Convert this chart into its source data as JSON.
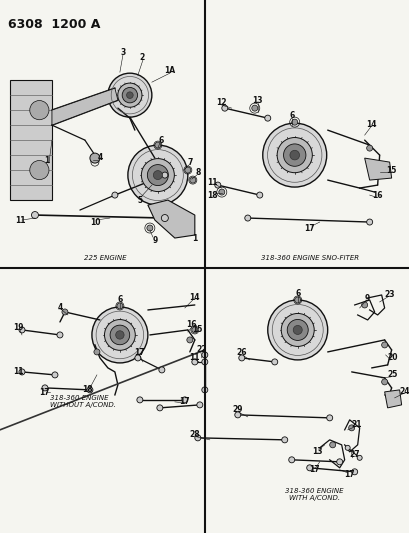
{
  "title": "6308  1200 A",
  "bg_color": "#f5f5f0",
  "line_color": "#1a1a1a",
  "text_color": "#111111",
  "divider_color": "#111111",
  "q1_label": "225 ENGINE",
  "q2_label": "318-360 ENGINE SNO-FITER",
  "q3_label": "318-360 ENGINE\nWITHOUT A/COND.",
  "q4_label": "318-360 ENGINE\nWITH A/COND.",
  "title_fontsize": 9,
  "label_fontsize": 5.0,
  "num_fontsize": 5.5,
  "lc": "#111111",
  "gc": "#888888"
}
